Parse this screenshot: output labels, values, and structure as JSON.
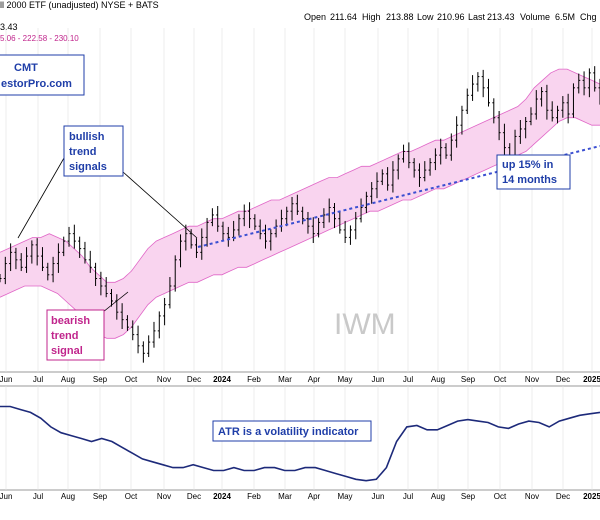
{
  "header": {
    "title": "ll 2000 ETF (unadjusted)  NYSE + BATS",
    "ohlc": [
      {
        "label": "Open",
        "value": "211.64"
      },
      {
        "label": "High",
        "value": "213.88"
      },
      {
        "label": "Low",
        "value": "210.96"
      },
      {
        "label": "Last",
        "value": "213.43"
      },
      {
        "label": "Volume",
        "value": "6.5M"
      },
      {
        "label": "Chg",
        "value": ""
      }
    ],
    "last_line": "3.43",
    "kc_line": "5.06 - 222.58 - 230.10"
  },
  "branding": {
    "line1": "CMT",
    "line2": "estorPro.com"
  },
  "annotations": {
    "bullish": [
      "bullish",
      "trend",
      "signals"
    ],
    "bearish": [
      "bearish",
      "trend",
      "signal"
    ],
    "gain": [
      "up 15% in",
      "14 months"
    ],
    "atr": "ATR is a volatility indicator",
    "watermark": "IWM"
  },
  "colors": {
    "price": "#000000",
    "channel_fill": "#f9d4ef",
    "channel_line": "#e066c7",
    "trend_line": "#3b4fd1",
    "atr_line": "#1d2a7a",
    "box_blue": "#1f3ea8",
    "box_pink": "#c0258c",
    "panel_border": "#9a9a9a"
  },
  "chart_data": [
    {
      "type": "line",
      "title": "",
      "price_x_labels": [
        "Jun",
        "Jul",
        "Aug",
        "Sep",
        "Oct",
        "Nov",
        "Dec",
        "2024",
        "Feb",
        "Mar",
        "Apr",
        "May",
        "Jun",
        "Jul",
        "Aug",
        "Sep",
        "Oct",
        "Nov",
        "Dec",
        "2025"
      ],
      "bold_x_labels": [
        "2024",
        "2025"
      ],
      "series": [
        {
          "values": [
            185,
            189,
            192,
            190,
            188,
            191,
            194,
            191,
            188,
            186,
            189,
            192,
            195,
            197,
            195,
            193,
            190,
            188,
            185,
            183,
            181,
            179,
            176,
            174,
            172,
            170,
            167,
            165,
            168,
            171,
            175,
            178,
            183,
            190,
            195,
            197,
            194,
            192,
            196,
            200,
            202,
            199,
            197,
            196,
            198,
            201,
            203,
            201,
            199,
            197,
            195,
            197,
            199,
            201,
            203,
            205,
            203,
            201,
            199,
            197,
            200,
            202,
            204,
            201,
            198,
            196,
            198,
            201,
            204,
            207,
            209,
            211,
            213,
            210,
            214,
            217,
            219,
            216,
            214,
            212,
            214,
            216,
            218,
            220,
            218,
            222,
            226,
            230,
            234,
            237,
            239,
            236,
            232,
            228,
            224,
            220,
            218,
            223,
            225,
            227,
            229,
            233,
            235,
            230,
            228,
            230,
            232,
            229,
            236,
            238,
            236,
            240,
            236,
            233
          ]
        },
        {
          "name": "Keltner Upper",
          "values": [
            192,
            193,
            194,
            195,
            196,
            196,
            197,
            196,
            195,
            193,
            191,
            188,
            186,
            184,
            184,
            185,
            187,
            190,
            193,
            195,
            196,
            197,
            198,
            199,
            199,
            200,
            201,
            201,
            202,
            203,
            203,
            204,
            205,
            206,
            206,
            207,
            208,
            209,
            210,
            211,
            212,
            212,
            213,
            214,
            215,
            215,
            216,
            217,
            218,
            219,
            219,
            220,
            221,
            222,
            222,
            223,
            224,
            225,
            226,
            227,
            228,
            229,
            230,
            231,
            233,
            236,
            238,
            240,
            241,
            241,
            240,
            239,
            238,
            237
          ]
        },
        {
          "name": "Keltner Lower",
          "values": [
            180,
            181,
            182,
            183,
            183,
            183,
            182,
            181,
            179,
            177,
            175,
            172,
            170,
            169,
            169,
            170,
            172,
            175,
            178,
            180,
            181,
            182,
            183,
            184,
            184,
            185,
            186,
            186,
            187,
            188,
            188,
            189,
            190,
            191,
            192,
            193,
            194,
            195,
            196,
            197,
            198,
            199,
            200,
            201,
            202,
            203,
            203,
            204,
            205,
            206,
            206,
            207,
            208,
            209,
            209,
            210,
            211,
            212,
            213,
            214,
            215,
            216,
            217,
            218,
            219,
            221,
            223,
            225,
            227,
            228,
            228,
            227,
            226,
            226
          ]
        }
      ]
    },
    {
      "type": "line",
      "title": "",
      "atr_x_labels": [
        "Jun",
        "Jul",
        "Aug",
        "Sep",
        "Oct",
        "Nov",
        "Dec",
        "2024",
        "Feb",
        "Mar",
        "Apr",
        "May",
        "Jun",
        "Jul",
        "Aug",
        "Sep",
        "Oct",
        "Nov",
        "Dec",
        "2025"
      ],
      "bold_x_labels": [
        "2024",
        "2025"
      ],
      "series": [
        {
          "name": "ATR",
          "values": [
            4.4,
            4.4,
            4.3,
            4.2,
            4.0,
            3.7,
            3.5,
            3.4,
            3.3,
            3.2,
            3.3,
            3.2,
            3.0,
            2.8,
            2.6,
            2.5,
            2.4,
            2.3,
            2.3,
            2.4,
            2.3,
            2.2,
            2.2,
            2.3,
            2.2,
            2.2,
            2.3,
            2.3,
            2.2,
            2.2,
            2.3,
            2.3,
            2.2,
            2.1,
            2.0,
            1.9,
            1.85,
            1.9,
            2.3,
            3.2,
            3.7,
            3.75,
            3.6,
            3.6,
            3.75,
            3.9,
            3.95,
            3.9,
            3.85,
            3.7,
            3.65,
            3.8,
            3.9,
            3.85,
            3.7,
            3.9,
            4.0,
            4.1,
            4.15,
            4.2
          ]
        }
      ]
    }
  ]
}
